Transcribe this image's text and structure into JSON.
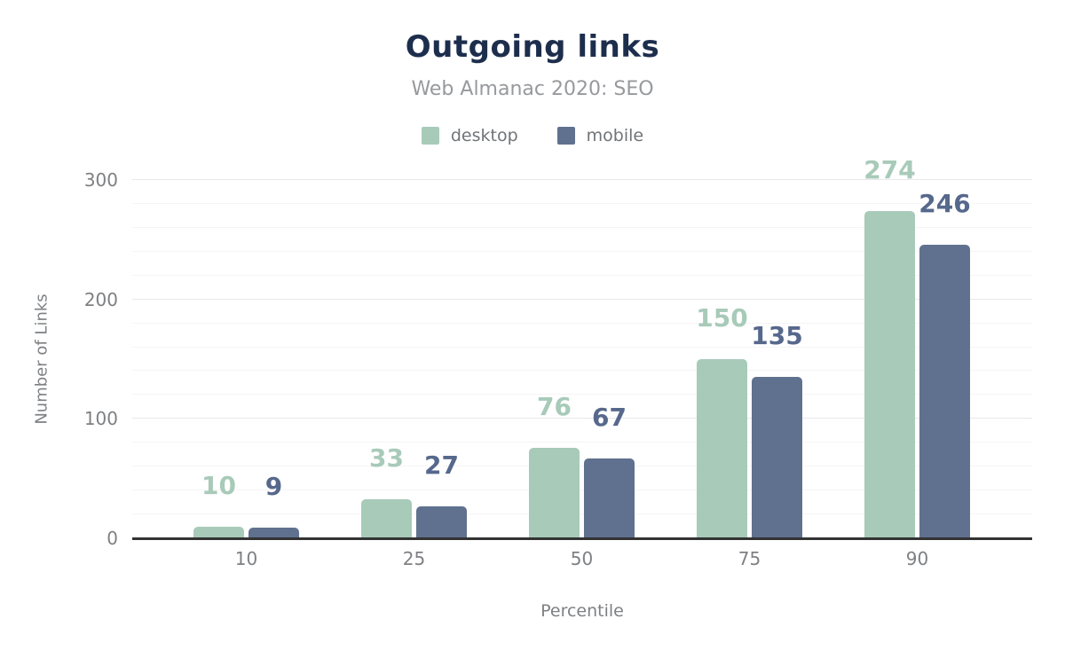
{
  "chart_data": {
    "type": "bar",
    "title": "Outgoing links",
    "subtitle": "Web Almanac 2020: SEO",
    "xlabel": "Percentile",
    "ylabel": "Number of Links",
    "categories": [
      "10",
      "25",
      "50",
      "75",
      "90"
    ],
    "series": [
      {
        "name": "desktop",
        "color": "#a8cab9",
        "label_color": "#a8cab9",
        "values": [
          10,
          33,
          76,
          150,
          274
        ]
      },
      {
        "name": "mobile",
        "color": "#5f718e",
        "label_color": "#56688b",
        "values": [
          9,
          27,
          67,
          135,
          246
        ]
      }
    ],
    "ylim": [
      0,
      300
    ],
    "yticks": [
      0,
      100,
      200,
      300
    ],
    "grid": {
      "minor_step": 20,
      "major_step": 100,
      "visible": true
    },
    "legend_position": "top",
    "show_value_labels": true,
    "axis_line_color": "#333333"
  }
}
